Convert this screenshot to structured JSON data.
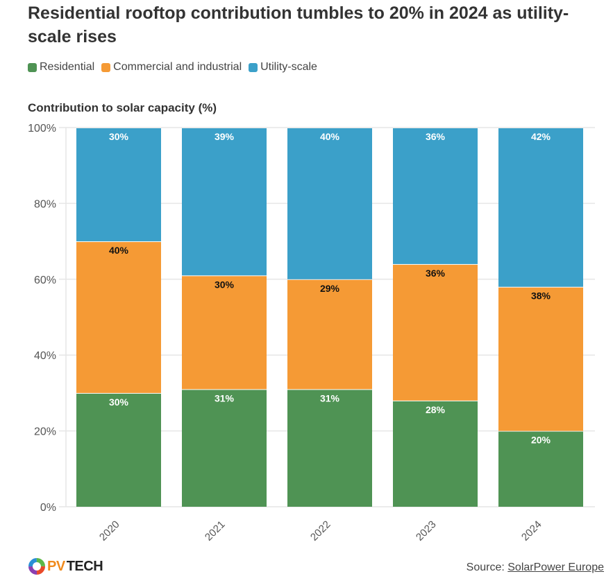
{
  "chart_data": {
    "type": "bar",
    "stacked": true,
    "title": "Residential rooftop contribution tumbles to 20% in 2024 as utility-scale rises",
    "ylabel": "Contribution to solar capacity (%)",
    "xlabel": "",
    "ylim": [
      0,
      100
    ],
    "yticks": [
      "0%",
      "20%",
      "40%",
      "60%",
      "80%",
      "100%"
    ],
    "grid": true,
    "legend_position": "top-left",
    "categories": [
      "2020",
      "2021",
      "2022",
      "2023",
      "2024"
    ],
    "series": [
      {
        "name": "Residential",
        "color": "#4f9354",
        "label_color": "#ffffff",
        "values": [
          30,
          31,
          31,
          28,
          20
        ]
      },
      {
        "name": "Commercial and industrial",
        "color": "#f59a35",
        "label_color": "#111111",
        "values": [
          40,
          30,
          29,
          36,
          38
        ]
      },
      {
        "name": "Utility-scale",
        "color": "#3ba0c9",
        "label_color": "#ffffff",
        "values": [
          30,
          39,
          40,
          36,
          42
        ]
      }
    ]
  },
  "footer": {
    "source_prefix": "Source: ",
    "source_link": "SolarPower Europe",
    "logo_text": "PVTECH"
  }
}
